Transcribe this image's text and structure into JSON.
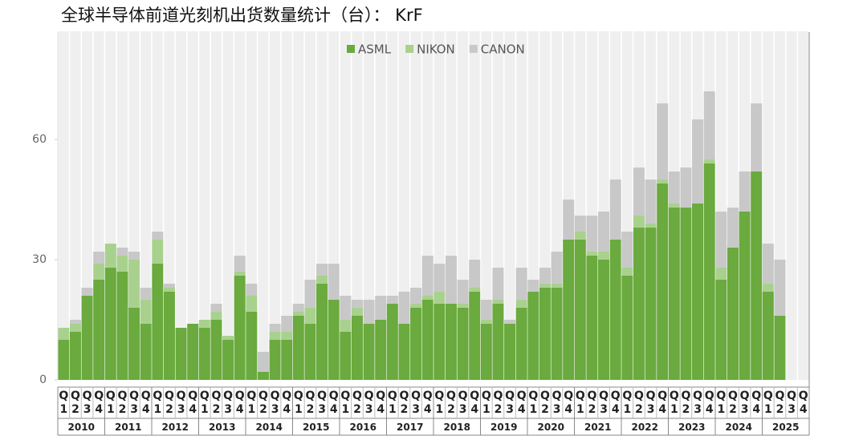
{
  "chart_data": {
    "type": "stacked-bar",
    "title": "全球半导体前道光刻机出货数量统计（台）： KrF",
    "categories": [
      "Q1",
      "Q2",
      "Q3",
      "Q4",
      "Q1",
      "Q2",
      "Q3",
      "Q4",
      "Q1",
      "Q2",
      "Q3",
      "Q4",
      "Q1",
      "Q2",
      "Q3",
      "Q4",
      "Q1",
      "Q2",
      "Q3",
      "Q4",
      "Q1",
      "Q2",
      "Q3",
      "Q4",
      "Q1",
      "Q2",
      "Q3",
      "Q4",
      "Q1",
      "Q2",
      "Q3",
      "Q4",
      "Q1",
      "Q2",
      "Q3",
      "Q4",
      "Q1",
      "Q2",
      "Q3",
      "Q4",
      "Q1",
      "Q2",
      "Q3",
      "Q4",
      "Q1",
      "Q2",
      "Q3",
      "Q4",
      "Q1",
      "Q2",
      "Q3",
      "Q4",
      "Q1",
      "Q2",
      "Q3",
      "Q4",
      "Q1",
      "Q2",
      "Q3",
      "Q4",
      "Q1",
      "Q2",
      "Q3",
      "Q4"
    ],
    "years": [
      "2010",
      "2011",
      "2012",
      "2013",
      "2014",
      "2015",
      "2016",
      "2017",
      "2018",
      "2019",
      "2020",
      "2021",
      "2022",
      "2023",
      "2024",
      "2025"
    ],
    "series": [
      {
        "name": "ASML",
        "color": "#6aaa3e",
        "values": [
          10,
          12,
          21,
          25,
          28,
          27,
          18,
          14,
          29,
          22,
          13,
          14,
          13,
          15,
          10,
          26,
          17,
          2,
          10,
          10,
          16,
          14,
          24,
          20,
          12,
          16,
          14,
          15,
          19,
          14,
          18,
          20,
          19,
          19,
          18,
          22,
          14,
          19,
          14,
          18,
          22,
          23,
          23,
          35,
          35,
          31,
          30,
          35,
          26,
          38,
          38,
          49,
          43,
          43,
          44,
          54,
          25,
          33,
          42,
          52,
          22,
          16,
          null,
          null
        ]
      },
      {
        "name": "NIKON",
        "color": "#a9d18e",
        "values": [
          3,
          2,
          0,
          4,
          6,
          4,
          12,
          6,
          6,
          1,
          0,
          0,
          2,
          2,
          1,
          1,
          4,
          0,
          2,
          2,
          1,
          4,
          2,
          0,
          3,
          2,
          0,
          0,
          0,
          0,
          1,
          1,
          3,
          0,
          1,
          1,
          1,
          1,
          0,
          2,
          0,
          1,
          1,
          0,
          2,
          1,
          2,
          0,
          2,
          3,
          1,
          1,
          1,
          0,
          0,
          1,
          3,
          0,
          0,
          0,
          2,
          0,
          null,
          null
        ]
      },
      {
        "name": "CANON",
        "color": "#c8c8c8",
        "values": [
          0,
          1,
          2,
          3,
          0,
          2,
          2,
          3,
          2,
          1,
          0,
          0,
          0,
          2,
          0,
          4,
          3,
          5,
          2,
          4,
          2,
          7,
          3,
          9,
          6,
          2,
          6,
          6,
          2,
          8,
          4,
          10,
          7,
          12,
          6,
          7,
          5,
          8,
          1,
          8,
          3,
          4,
          8,
          10,
          4,
          9,
          10,
          15,
          9,
          12,
          11,
          19,
          8,
          10,
          21,
          17,
          14,
          10,
          10,
          17,
          10,
          14,
          null,
          null
        ]
      }
    ],
    "ylim": [
      0,
      87
    ],
    "yticks": [
      0,
      30,
      60
    ],
    "legend": "top-center"
  }
}
